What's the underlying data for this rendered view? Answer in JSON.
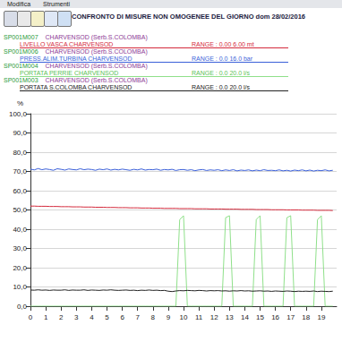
{
  "menu": [
    "Modifica",
    "Strumenti"
  ],
  "chart_data": {
    "type": "line",
    "title": "CONFRONTO DI MISURE NON OMOGENEE DEL GIORNO dom 28/02/2016",
    "y_label": "%",
    "x": [
      0,
      0.25,
      0.5,
      0.75,
      1,
      1.25,
      1.5,
      1.75,
      2,
      2.25,
      2.5,
      2.75,
      3,
      3.25,
      3.5,
      3.75,
      4,
      4.25,
      4.5,
      4.75,
      5,
      5.25,
      5.5,
      5.75,
      6,
      6.25,
      6.5,
      6.75,
      7,
      7.25,
      7.5,
      7.75,
      8,
      8.25,
      8.5,
      8.75,
      9,
      9.25,
      9.5,
      9.75,
      10,
      10.25,
      10.5,
      10.75,
      11,
      11.25,
      11.5,
      11.75,
      12,
      12.25,
      12.5,
      12.75,
      13,
      13.25,
      13.5,
      13.75,
      14,
      14.25,
      14.5,
      14.75,
      15,
      15.25,
      15.5,
      15.75,
      16,
      16.25,
      16.5,
      16.75,
      17,
      17.25,
      17.5,
      17.75,
      18,
      18.25,
      18.5,
      18.75,
      19,
      19.25,
      19.5,
      19.75
    ],
    "series": [
      {
        "code": "SP001M007",
        "station": "CHARVENSOD (Serb.S.COLOMBA)",
        "name": "LIVELLO VASCA CHARVENSOD",
        "range_label": "RANGE : 0.00 6.00 mt",
        "color": "#d42a3c",
        "values": [
          52.0,
          52.0,
          51.9,
          51.9,
          51.9,
          51.8,
          51.8,
          51.8,
          51.7,
          51.7,
          51.7,
          51.6,
          51.6,
          51.6,
          51.5,
          51.5,
          51.5,
          51.4,
          51.4,
          51.4,
          51.3,
          51.3,
          51.3,
          51.2,
          51.2,
          51.2,
          51.1,
          51.1,
          51.1,
          51.0,
          51.0,
          51.0,
          50.9,
          50.9,
          50.9,
          50.8,
          50.8,
          50.8,
          50.8,
          50.7,
          50.7,
          50.7,
          50.7,
          50.6,
          50.6,
          50.6,
          50.6,
          50.5,
          50.5,
          50.5,
          50.5,
          50.4,
          50.4,
          50.4,
          50.4,
          50.3,
          50.3,
          50.3,
          50.3,
          50.2,
          50.2,
          50.2,
          50.2,
          50.1,
          50.1,
          50.1,
          50.1,
          50.0,
          50.0,
          50.0,
          50.0,
          49.9,
          49.9,
          49.9,
          49.9,
          49.8,
          49.8,
          49.8,
          49.8,
          49.7
        ]
      },
      {
        "code": "SP001M006",
        "station": "CHARVENSOD (Serb.S.COLOMBA)",
        "name": "PRESS.ALIM.TURBINA CHARVENSOD",
        "range_label": "RANGE : 0.0 16.0 bar",
        "color": "#3a5fd9",
        "values": [
          71.2,
          70.8,
          71.5,
          70.9,
          71.3,
          71.0,
          70.6,
          71.4,
          71.1,
          70.7,
          71.3,
          71.0,
          70.8,
          71.4,
          70.9,
          71.2,
          71.0,
          70.6,
          71.2,
          70.9,
          71.3,
          70.7,
          71.1,
          70.8,
          71.2,
          70.9,
          70.6,
          71.1,
          70.8,
          71.3,
          70.7,
          71.0,
          70.9,
          71.2,
          70.6,
          71.0,
          70.8,
          71.1,
          70.5,
          70.9,
          71.0,
          70.6,
          70.9,
          70.4,
          70.8,
          71.0,
          70.5,
          70.8,
          70.6,
          70.9,
          70.4,
          70.8,
          70.5,
          70.9,
          70.3,
          70.7,
          70.5,
          70.8,
          70.3,
          70.7,
          70.4,
          70.9,
          70.5,
          70.6,
          70.4,
          70.8,
          70.3,
          70.6,
          70.2,
          70.7,
          70.4,
          70.8,
          70.3,
          70.7,
          70.2,
          70.6,
          70.4,
          70.8,
          70.3,
          70.6
        ]
      },
      {
        "code": "SP001M004",
        "station": "CHARVENSOD (Serb.S.COLOMBA)",
        "name": "PORTATA PERRIE CHARVENSOD",
        "range_label": "RANGE : 0.0 20.0 l/s",
        "color": "#8fe08a",
        "values": [
          0,
          0,
          0,
          0,
          0,
          0,
          0,
          0,
          0,
          0,
          0,
          0,
          0,
          0,
          0,
          0,
          0,
          0,
          0,
          0,
          0,
          0,
          0,
          0,
          0,
          0,
          0,
          0,
          0,
          0,
          0,
          0,
          0,
          0,
          0,
          0,
          0,
          0,
          0,
          45,
          47,
          0,
          0,
          0,
          0,
          0,
          0,
          0,
          0,
          0,
          0,
          46,
          47,
          0,
          0,
          0,
          0,
          0,
          0,
          45,
          47,
          0,
          0,
          0,
          0,
          0,
          0,
          46,
          47,
          0,
          0,
          0,
          0,
          0,
          0,
          45,
          47,
          0,
          0,
          0
        ]
      },
      {
        "code": "SP001M003",
        "station": "CHARVENSOD (Serb.S.COLOMBA)",
        "name": "PORTATA S.COLOMBA CHARVENSOD",
        "range_label": "RANGE : 0.0 20.0 l/s",
        "color": "#222222",
        "values": [
          8.4,
          8.3,
          8.5,
          8.3,
          8.4,
          8.2,
          8.4,
          8.3,
          8.3,
          8.5,
          8.2,
          8.4,
          8.3,
          8.3,
          8.5,
          8.2,
          8.4,
          8.3,
          8.2,
          8.4,
          8.3,
          8.5,
          8.3,
          8.2,
          8.3,
          8.4,
          8.2,
          8.3,
          8.1,
          8.3,
          8.2,
          8.4,
          8.2,
          8.3,
          8.1,
          8.2,
          7.8,
          7.6,
          7.9,
          8.1,
          8.0,
          8.2,
          8.1,
          8.0,
          8.2,
          8.1,
          7.9,
          8.1,
          8.0,
          8.1,
          7.9,
          8.0,
          7.8,
          8.0,
          7.9,
          8.1,
          7.9,
          8.0,
          7.8,
          7.9,
          8.0,
          7.8,
          7.9,
          7.7,
          7.9,
          7.8,
          7.7,
          7.9,
          7.8,
          7.6,
          7.8,
          7.7,
          7.8,
          7.7,
          7.9,
          7.6,
          7.8,
          7.7,
          7.6,
          7.8
        ]
      }
    ],
    "xlim": [
      0,
      20
    ],
    "xticks": [
      0,
      1,
      2,
      3,
      4,
      5,
      6,
      7,
      8,
      9,
      10,
      11,
      12,
      13,
      14,
      15,
      16,
      17,
      18,
      19
    ],
    "ylim": [
      0,
      100
    ],
    "yticks": [
      {
        "value": 0,
        "label": "0,0"
      },
      {
        "value": 10,
        "label": "10,0"
      },
      {
        "value": 20,
        "label": "20,0"
      },
      {
        "value": 30,
        "label": "30,0"
      },
      {
        "value": 40,
        "label": "40,0"
      },
      {
        "value": 50,
        "label": "50,0"
      },
      {
        "value": 60,
        "label": "60,0"
      },
      {
        "value": 70,
        "label": "70,0"
      },
      {
        "value": 80,
        "label": "80,0"
      },
      {
        "value": 90,
        "label": "90,0"
      },
      {
        "value": 100,
        "label": "100,0"
      }
    ],
    "grid": true
  }
}
